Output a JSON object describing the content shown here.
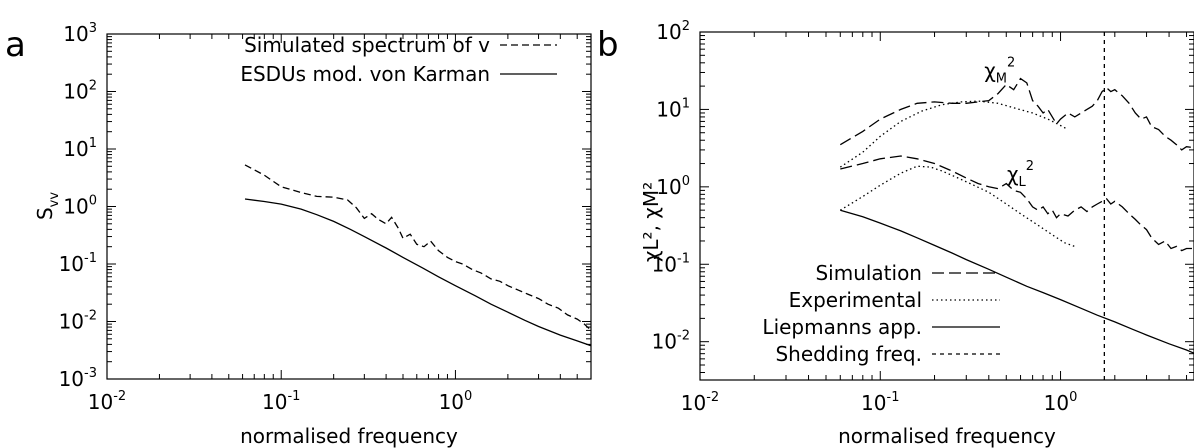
{
  "chart_data": [
    {
      "panel": "a",
      "type": "line",
      "xscale": "log",
      "yscale": "log",
      "xlim": [
        0.01,
        6
      ],
      "ylim": [
        0.001,
        1000
      ],
      "xticks": [
        {
          "value": 0.01,
          "base": "10",
          "exp": "-2"
        },
        {
          "value": 0.1,
          "base": "10",
          "exp": "-1"
        },
        {
          "value": 1,
          "base": "10",
          "exp": "0"
        }
      ],
      "yticks": [
        {
          "value": 0.001,
          "base": "10",
          "exp": "-3"
        },
        {
          "value": 0.01,
          "base": "10",
          "exp": "-2"
        },
        {
          "value": 0.1,
          "base": "10",
          "exp": "-1"
        },
        {
          "value": 1,
          "base": "10",
          "exp": "0"
        },
        {
          "value": 10,
          "base": "10",
          "exp": "1"
        },
        {
          "value": 100,
          "base": "10",
          "exp": "2"
        },
        {
          "value": 1000,
          "base": "10",
          "exp": "3"
        }
      ],
      "xlabel": "normalised frequency",
      "ylabel": {
        "base": "S",
        "sub": "vv"
      },
      "legend_position": "top-right",
      "series": [
        {
          "name": "Simulated spectrum of v",
          "style": "dashed",
          "x": [
            0.062,
            0.08,
            0.1,
            0.13,
            0.16,
            0.2,
            0.24,
            0.27,
            0.3,
            0.33,
            0.36,
            0.4,
            0.43,
            0.47,
            0.5,
            0.55,
            0.6,
            0.66,
            0.72,
            0.8,
            0.9,
            1.0,
            1.1,
            1.25,
            1.4,
            1.6,
            1.8,
            2.0,
            2.3,
            2.6,
            3.0,
            3.4,
            3.9,
            4.4,
            5.0,
            5.5,
            6.0
          ],
          "y": [
            5.3,
            3.5,
            2.2,
            1.75,
            1.5,
            1.45,
            1.3,
            0.95,
            0.62,
            0.75,
            0.6,
            0.5,
            0.65,
            0.42,
            0.28,
            0.33,
            0.22,
            0.2,
            0.25,
            0.17,
            0.13,
            0.11,
            0.1,
            0.08,
            0.07,
            0.055,
            0.05,
            0.042,
            0.035,
            0.03,
            0.025,
            0.02,
            0.017,
            0.013,
            0.011,
            0.009,
            0.007
          ]
        },
        {
          "name": "ESDUs mod. von Karman",
          "style": "solid",
          "x": [
            0.062,
            0.08,
            0.1,
            0.13,
            0.16,
            0.2,
            0.25,
            0.3,
            0.4,
            0.5,
            0.65,
            0.8,
            1.0,
            1.3,
            1.6,
            2.0,
            2.5,
            3.0,
            4.0,
            5.0,
            6.0
          ],
          "y": [
            1.35,
            1.22,
            1.1,
            0.9,
            0.72,
            0.55,
            0.4,
            0.3,
            0.19,
            0.13,
            0.085,
            0.06,
            0.042,
            0.028,
            0.02,
            0.0145,
            0.0105,
            0.0082,
            0.0058,
            0.0046,
            0.0038
          ]
        }
      ]
    },
    {
      "panel": "b",
      "type": "line",
      "xscale": "log",
      "yscale": "log",
      "xlim": [
        0.01,
        5.5
      ],
      "ylim": [
        0.0032,
        100
      ],
      "xticks": [
        {
          "value": 0.01,
          "base": "10",
          "exp": "-2"
        },
        {
          "value": 0.1,
          "base": "10",
          "exp": "-1"
        },
        {
          "value": 1,
          "base": "10",
          "exp": "0"
        }
      ],
      "yticks": [
        {
          "value": 0.01,
          "base": "10",
          "exp": "-2"
        },
        {
          "value": 0.1,
          "base": "10",
          "exp": "-1"
        },
        {
          "value": 1,
          "base": "10",
          "exp": "0"
        },
        {
          "value": 10,
          "base": "10",
          "exp": "1"
        },
        {
          "value": 100,
          "base": "10",
          "exp": "2"
        }
      ],
      "xlabel": "normalised frequency",
      "ylabel": "χL², χM²",
      "legend_position": "bottom-left",
      "annotations": [
        {
          "text": "χM",
          "sup": "2",
          "x": 0.46,
          "y": 33
        },
        {
          "text": "χL",
          "sup": "2",
          "x": 0.6,
          "y": 1.5
        }
      ],
      "series": [
        {
          "name": "Simulation",
          "style": "longdash",
          "curves": [
            {
              "x": [
                0.06,
                0.08,
                0.1,
                0.13,
                0.16,
                0.2,
                0.25,
                0.3,
                0.35,
                0.4,
                0.45,
                0.5,
                0.55,
                0.6,
                0.65,
                0.7,
                0.75,
                0.8,
                0.85,
                0.9,
                0.95,
                1.0,
                1.1,
                1.2,
                1.3,
                1.4,
                1.5,
                1.6,
                1.7,
                1.8,
                1.9,
                2.0,
                2.2,
                2.4,
                2.6,
                2.8,
                3.0,
                3.2,
                3.5,
                3.8,
                4.1,
                4.4,
                4.7,
                5.0,
                5.5
              ],
              "y": [
                3.5,
                5.2,
                7.5,
                10,
                12,
                12.5,
                12,
                12,
                12.5,
                13,
                16,
                21,
                18,
                25,
                22,
                13,
                11,
                9,
                10,
                8,
                6.5,
                7.5,
                9,
                8,
                9,
                10,
                11,
                13,
                17,
                19,
                17,
                18,
                15,
                12,
                9,
                7.5,
                8,
                6,
                5.5,
                4.5,
                4,
                3.5,
                3,
                3.3,
                3.2
              ]
            },
            {
              "x": [
                0.06,
                0.08,
                0.1,
                0.13,
                0.16,
                0.2,
                0.25,
                0.3,
                0.35,
                0.4,
                0.45,
                0.5,
                0.55,
                0.6,
                0.65,
                0.7,
                0.75,
                0.8,
                0.85,
                0.9,
                0.95,
                1.0,
                1.1,
                1.2,
                1.3,
                1.4,
                1.5,
                1.6,
                1.7,
                1.8,
                1.9,
                2.0,
                2.2,
                2.4,
                2.6,
                2.8,
                3.0,
                3.2,
                3.5,
                3.8,
                4.1,
                4.4,
                4.7,
                5.0,
                5.5
              ],
              "y": [
                1.7,
                2.0,
                2.3,
                2.5,
                2.3,
                2.0,
                1.6,
                1.3,
                1.1,
                1.0,
                0.95,
                1.1,
                0.9,
                0.85,
                0.7,
                0.55,
                0.5,
                0.55,
                0.45,
                0.5,
                0.4,
                0.45,
                0.42,
                0.5,
                0.55,
                0.48,
                0.55,
                0.6,
                0.65,
                0.7,
                0.6,
                0.65,
                0.55,
                0.45,
                0.38,
                0.32,
                0.28,
                0.22,
                0.18,
                0.2,
                0.16,
                0.17,
                0.15,
                0.16,
                0.16
              ]
            }
          ]
        },
        {
          "name": "Experimental",
          "style": "dotted",
          "curves": [
            {
              "x": [
                0.06,
                0.08,
                0.1,
                0.13,
                0.17,
                0.22,
                0.28,
                0.35,
                0.45,
                0.55,
                0.7,
                0.85,
                1.0,
                1.1
              ],
              "y": [
                1.8,
                2.8,
                4.5,
                7,
                9.5,
                11.5,
                12.5,
                12.8,
                12,
                10.5,
                9,
                7.5,
                6.2,
                5.5
              ]
            },
            {
              "x": [
                0.06,
                0.08,
                0.1,
                0.13,
                0.16,
                0.19,
                0.22,
                0.27,
                0.33,
                0.4,
                0.5,
                0.6,
                0.75,
                0.9,
                1.05,
                1.2
              ],
              "y": [
                0.5,
                0.75,
                1.05,
                1.5,
                1.85,
                1.8,
                1.6,
                1.3,
                1.05,
                0.85,
                0.6,
                0.45,
                0.32,
                0.24,
                0.19,
                0.17
              ]
            }
          ]
        },
        {
          "name": "Liepmanns app.",
          "style": "solid",
          "curves": [
            {
              "x": [
                0.06,
                0.08,
                0.1,
                0.13,
                0.16,
                0.2,
                0.25,
                0.3,
                0.4,
                0.5,
                0.65,
                0.8,
                1.0,
                1.3,
                1.6,
                2.0,
                2.5,
                3.0,
                4.0,
                5.0,
                5.5
              ],
              "y": [
                0.5,
                0.41,
                0.34,
                0.27,
                0.22,
                0.175,
                0.14,
                0.115,
                0.086,
                0.068,
                0.052,
                0.043,
                0.035,
                0.027,
                0.022,
                0.018,
                0.0145,
                0.0122,
                0.0094,
                0.0078,
                0.0071
              ]
            }
          ]
        },
        {
          "name": "Shedding freq.",
          "style": "shortdash",
          "vline_x": 1.75
        }
      ]
    }
  ]
}
